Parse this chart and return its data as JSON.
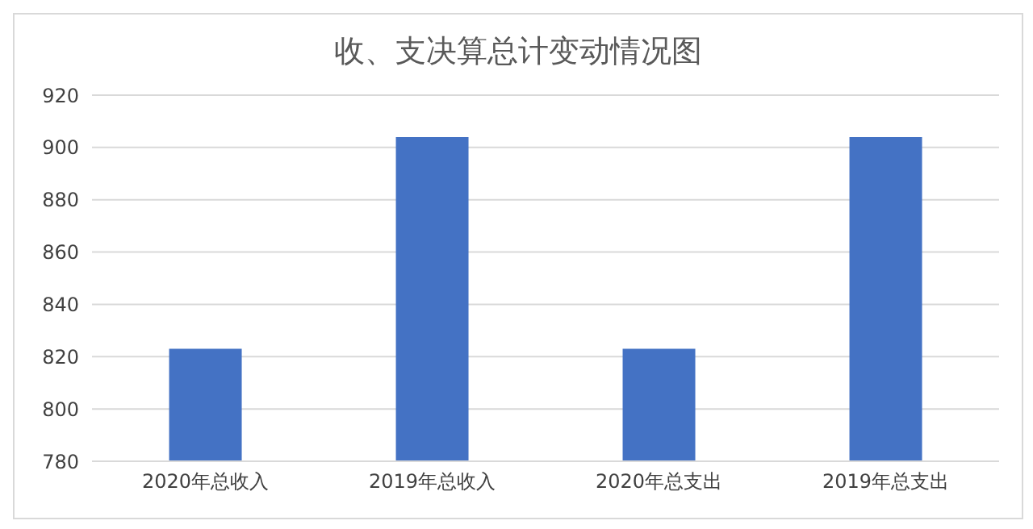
{
  "chart_data": {
    "type": "bar",
    "title": "收、支决算总计变动情况图",
    "categories": [
      "2020年总收入",
      "2019年总收入",
      "2020年总支出",
      "2019年总支出"
    ],
    "values": [
      823,
      904,
      823,
      904
    ],
    "color": "#4472c4",
    "ylim": [
      780,
      920
    ],
    "yticks": [
      780,
      800,
      820,
      840,
      860,
      880,
      900,
      920
    ],
    "grid": "y"
  }
}
